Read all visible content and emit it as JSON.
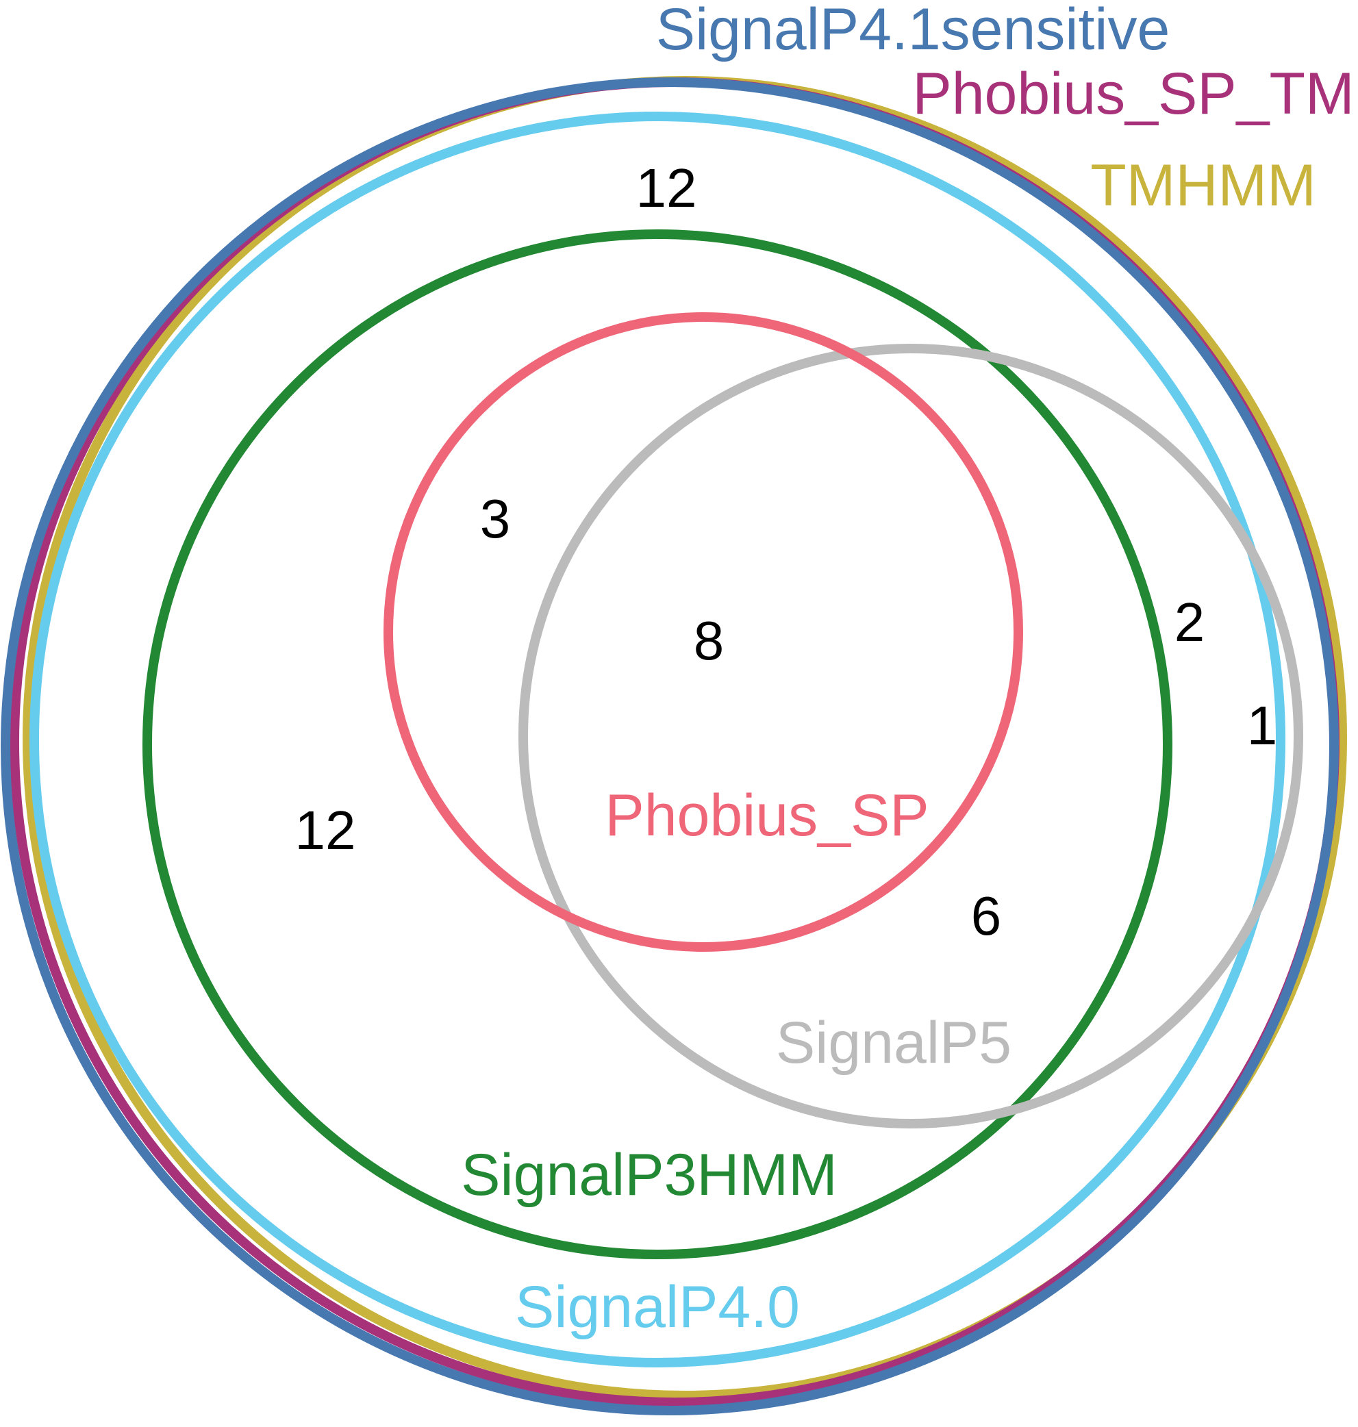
{
  "diagram": {
    "sets": [
      {
        "id": "tmhmm",
        "name": "TMHMM",
        "color": "#c8b43c"
      },
      {
        "id": "phobius-sp-tm",
        "name": "Phobius_SP_TM",
        "color": "#a8327a"
      },
      {
        "id": "signalp41-sensitive",
        "name": "SignalP4.1sensitive",
        "color": "#4878b0"
      },
      {
        "id": "signalp40",
        "name": "SignalP4.0",
        "color": "#66ccee"
      },
      {
        "id": "signalp3hmm",
        "name": "SignalP3HMM",
        "color": "#228833"
      },
      {
        "id": "signalp5",
        "name": "SignalP5",
        "color": "#bbbbbb"
      },
      {
        "id": "phobius-sp",
        "name": "Phobius_SP",
        "color": "#ee6677"
      }
    ],
    "region_counts": {
      "outer_ring": "12",
      "signalp3hmm_only": "12",
      "phobius_sp_only": "3",
      "phobius_sp_and_signalp5": "8",
      "signalp5_inside_signalp3hmm": "6",
      "signalp5_inside_signalp40": "2",
      "signalp5_outside_signalp40": "1"
    }
  }
}
